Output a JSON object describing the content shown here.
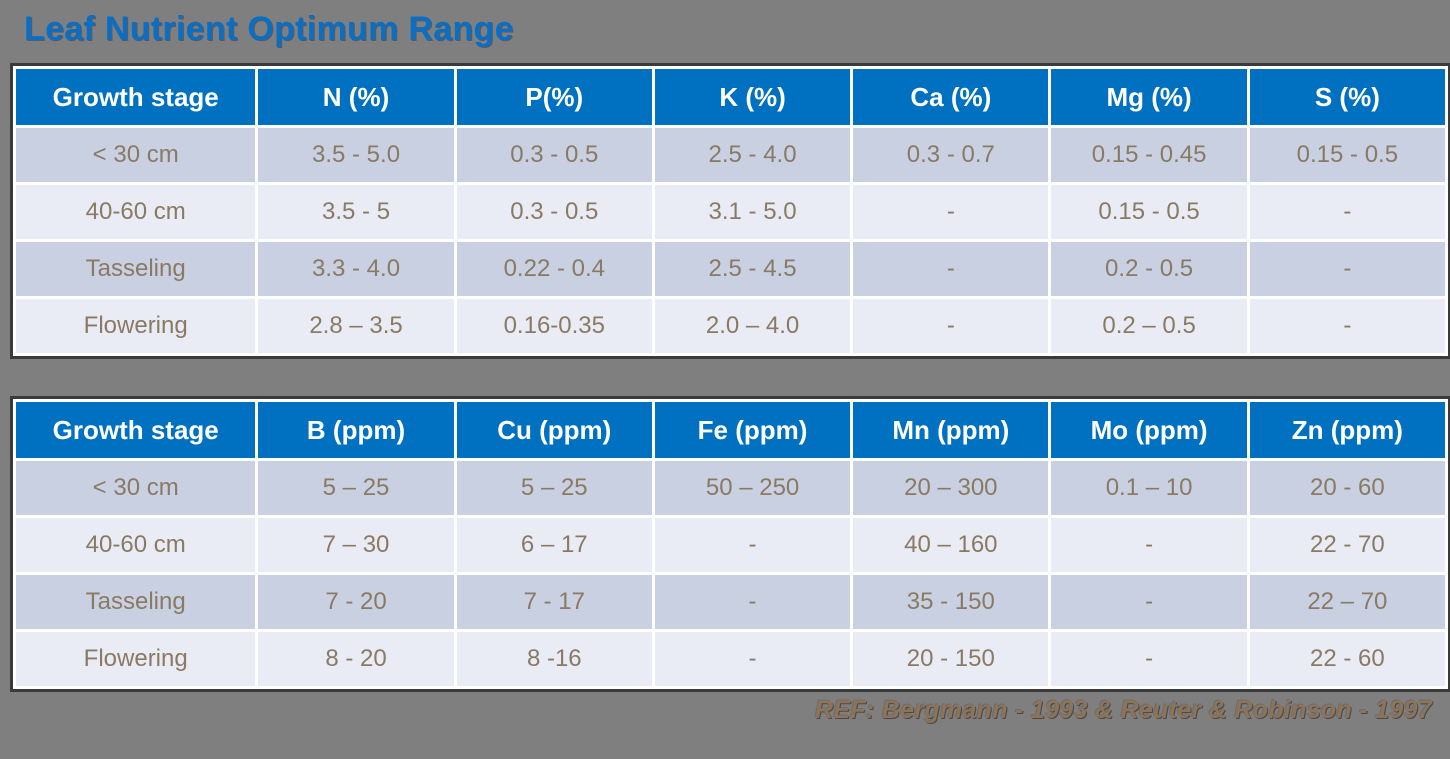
{
  "title": "Leaf Nutrient Optimum Range",
  "reference": "REF:  Bergmann - 1993 & Reuter & Robinson - 1997",
  "colors": {
    "background_gray": "#7F7F7F",
    "header_blue": "#0070C0",
    "title_blue": "#0A6FC2",
    "row_dark": "#C8D0E1",
    "row_light": "#E9ECF4",
    "cell_text_brown": "#8A7A64",
    "reference_brown": "#8D7458",
    "table_border_dark": "#3A3A3A"
  },
  "chart_data": [
    {
      "type": "table",
      "title": "Leaf Nutrient Optimum Range - Macronutrients (%)",
      "headers": [
        "Growth stage",
        "N (%)",
        "P(%)",
        "K (%)",
        "Ca (%)",
        "Mg (%)",
        "S (%)"
      ],
      "rows": [
        [
          "< 30 cm",
          "3.5 - 5.0",
          "0.3 - 0.5",
          "2.5 - 4.0",
          "0.3 - 0.7",
          "0.15 - 0.45",
          "0.15 - 0.5"
        ],
        [
          "40-60 cm",
          "3.5 - 5",
          "0.3 - 0.5",
          "3.1 - 5.0",
          "-",
          "0.15 - 0.5",
          "-"
        ],
        [
          "Tasseling",
          "3.3 - 4.0",
          "0.22 - 0.4",
          "2.5 - 4.5",
          "-",
          "0.2 - 0.5",
          "-"
        ],
        [
          "Flowering",
          "2.8 – 3.5",
          "0.16-0.35",
          "2.0 – 4.0",
          "-",
          "0.2 – 0.5",
          "-"
        ]
      ]
    },
    {
      "type": "table",
      "title": "Leaf Nutrient Optimum Range - Micronutrients (ppm)",
      "headers": [
        "Growth stage",
        "B (ppm)",
        "Cu (ppm)",
        "Fe (ppm)",
        "Mn (ppm)",
        "Mo (ppm)",
        "Zn (ppm)"
      ],
      "rows": [
        [
          "< 30 cm",
          "5 – 25",
          "5 – 25",
          "50 – 250",
          "20 – 300",
          "0.1 – 10",
          "20 - 60"
        ],
        [
          "40-60 cm",
          "7 – 30",
          "6 – 17",
          "-",
          "40 – 160",
          "-",
          "22 - 70"
        ],
        [
          "Tasseling",
          "7 - 20",
          "7 - 17",
          "-",
          "35 - 150",
          "-",
          "22 – 70"
        ],
        [
          "Flowering",
          "8 - 20",
          "8 -16",
          "-",
          "20 - 150",
          "-",
          "22 - 60"
        ]
      ]
    }
  ]
}
